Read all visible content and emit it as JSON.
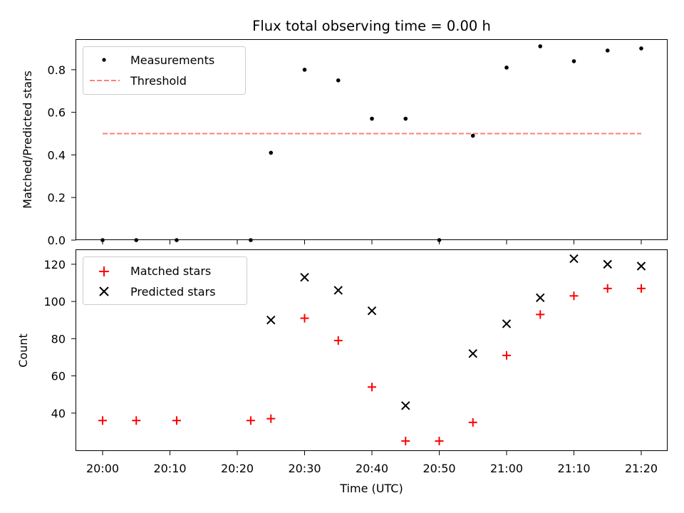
{
  "chart_data": [
    {
      "type": "scatter",
      "title": "Flux total observing time = 0.00 h",
      "xlabel": "",
      "ylabel": "Matched/Predicted stars",
      "ylim": [
        0,
        0.94
      ],
      "yticks": [
        "0.0",
        "0.2",
        "0.4",
        "0.6",
        "0.8"
      ],
      "legend_position": "top-left",
      "series": [
        {
          "name": "Measurements",
          "marker": "dot",
          "color": "#000000",
          "x": [
            "20:00",
            "20:05",
            "20:11",
            "20:22",
            "20:25",
            "20:30",
            "20:35",
            "20:40",
            "20:45",
            "20:50",
            "20:55",
            "21:00",
            "21:05",
            "21:10",
            "21:15",
            "21:20"
          ],
          "y": [
            0.0,
            0.0,
            0.0,
            0.0,
            0.41,
            0.8,
            0.75,
            0.57,
            0.57,
            0.0,
            0.49,
            0.81,
            0.91,
            0.84,
            0.89,
            0.9
          ]
        },
        {
          "name": "Threshold",
          "line": "dashed",
          "color": "#ff7f7f",
          "x": [
            "20:00",
            "21:20"
          ],
          "y": [
            0.5,
            0.5
          ]
        }
      ]
    },
    {
      "type": "scatter",
      "title": "",
      "xlabel": "Time (UTC)",
      "ylabel": "Count",
      "ylim": [
        20,
        128
      ],
      "yticks": [
        "40",
        "60",
        "80",
        "100",
        "120"
      ],
      "xticks": [
        "20:00",
        "20:10",
        "20:20",
        "20:30",
        "20:40",
        "20:50",
        "21:00",
        "21:10",
        "21:20"
      ],
      "legend_position": "top-left",
      "series": [
        {
          "name": "Matched stars",
          "marker": "plus",
          "color": "#ff0000",
          "x": [
            "20:00",
            "20:05",
            "20:11",
            "20:22",
            "20:25",
            "20:30",
            "20:35",
            "20:40",
            "20:45",
            "20:50",
            "20:55",
            "21:00",
            "21:05",
            "21:10",
            "21:15",
            "21:20"
          ],
          "y": [
            36,
            36,
            36,
            36,
            37,
            91,
            79,
            54,
            25,
            25,
            35,
            71,
            93,
            103,
            107,
            107
          ]
        },
        {
          "name": "Predicted stars",
          "marker": "x",
          "color": "#000000",
          "x": [
            "20:25",
            "20:30",
            "20:35",
            "20:40",
            "20:45",
            "20:55",
            "21:00",
            "21:05",
            "21:10",
            "21:15",
            "21:20"
          ],
          "y": [
            90,
            113,
            106,
            95,
            44,
            72,
            88,
            102,
            123,
            120,
            119
          ]
        }
      ]
    }
  ]
}
